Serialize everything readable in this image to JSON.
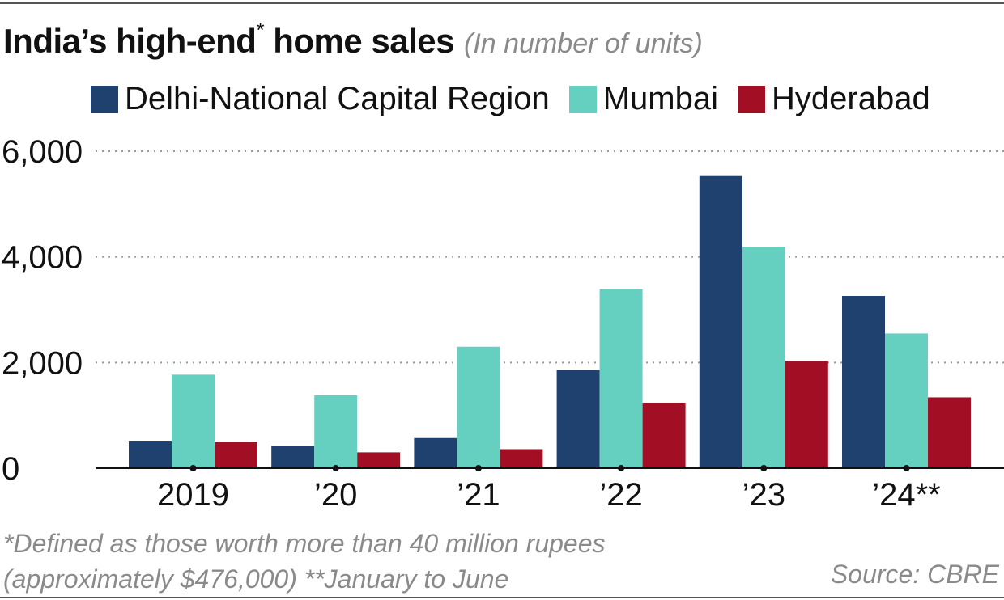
{
  "header": {
    "title": "India’s high-end",
    "title_mark": "*",
    "title_tail": " home sales",
    "subtitle": "(In number of units)"
  },
  "footnotes": {
    "line1": "*Defined as those worth more than 40 million rupees",
    "line2": "(approximately $476,000)  **January to June",
    "source": "Source: CBRE"
  },
  "colors": {
    "delhi": "#1f4170",
    "mumbai": "#66d0c0",
    "hyderabad": "#a20f24"
  },
  "chart_data": {
    "type": "bar",
    "title": "India’s high-end* home sales",
    "subtitle": "(In number of units)",
    "categories": [
      "2019",
      "’20",
      "’21",
      "’22",
      "’23",
      "’24**"
    ],
    "series": [
      {
        "name": "Delhi-National Capital Region",
        "color": "#1f4170",
        "values": [
          520,
          420,
          570,
          1860,
          5530,
          3260
        ]
      },
      {
        "name": "Mumbai",
        "color": "#66d0c0",
        "values": [
          1770,
          1380,
          2300,
          3390,
          4190,
          2550
        ]
      },
      {
        "name": "Hyderabad",
        "color": "#a20f24",
        "values": [
          500,
          300,
          360,
          1240,
          2030,
          1340
        ]
      }
    ],
    "yticks": [
      0,
      2000,
      4000,
      6000
    ],
    "ytick_labels": [
      "0",
      "2,000",
      "4,000",
      "6,000"
    ],
    "ylim": [
      0,
      6000
    ],
    "grid": true,
    "legend": "top"
  }
}
